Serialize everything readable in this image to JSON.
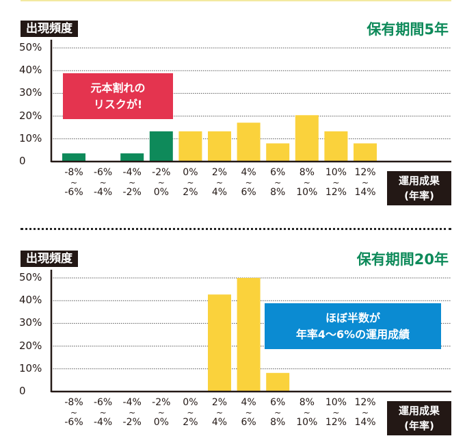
{
  "colors": {
    "green": "#0e8a5a",
    "yellow": "#fad23c",
    "red": "#e4344f",
    "blue": "#0b8bd2",
    "axis": "#231815"
  },
  "chart_data": [
    {
      "type": "bar",
      "title": "保有期間5年",
      "ylabel": "出現頻度",
      "xlabel": "運用成果(年率)",
      "xlabel_line1": "運用成果",
      "xlabel_line2": "(年率)",
      "ylim": [
        0,
        50
      ],
      "yticks": [
        "0",
        "10%",
        "20%",
        "30%",
        "40%",
        "50%"
      ],
      "grid": true,
      "categories": [
        {
          "from": "-8%",
          "to": "-6%"
        },
        {
          "from": "-6%",
          "to": "-4%"
        },
        {
          "from": "-4%",
          "to": "-2%"
        },
        {
          "from": "-2%",
          "to": "0%"
        },
        {
          "from": "0%",
          "to": "2%"
        },
        {
          "from": "2%",
          "to": "4%"
        },
        {
          "from": "4%",
          "to": "6%"
        },
        {
          "from": "6%",
          "to": "8%"
        },
        {
          "from": "8%",
          "to": "10%"
        },
        {
          "from": "10%",
          "to": "12%"
        },
        {
          "from": "12%",
          "to": "14%"
        }
      ],
      "values": [
        3.6,
        0,
        3.6,
        13.3,
        13.3,
        13.3,
        17.1,
        8.0,
        20.4,
        13.3,
        8.0
      ],
      "bar_colors": [
        "green",
        "green",
        "green",
        "green",
        "yellow",
        "yellow",
        "yellow",
        "yellow",
        "yellow",
        "yellow",
        "yellow"
      ],
      "annotation": {
        "line1": "元本割れの",
        "line2": "リスクが!",
        "color": "red"
      }
    },
    {
      "type": "bar",
      "title": "保有期間20年",
      "ylabel": "出現頻度",
      "xlabel": "運用成果(年率)",
      "xlabel_line1": "運用成果",
      "xlabel_line2": "(年率)",
      "ylim": [
        0,
        50
      ],
      "yticks": [
        "0",
        "10%",
        "20%",
        "30%",
        "40%",
        "50%"
      ],
      "grid": true,
      "categories": [
        {
          "from": "-8%",
          "to": "-6%"
        },
        {
          "from": "-6%",
          "to": "-4%"
        },
        {
          "from": "-4%",
          "to": "-2%"
        },
        {
          "from": "-2%",
          "to": "0%"
        },
        {
          "from": "0%",
          "to": "2%"
        },
        {
          "from": "2%",
          "to": "4%"
        },
        {
          "from": "4%",
          "to": "6%"
        },
        {
          "from": "6%",
          "to": "8%"
        },
        {
          "from": "8%",
          "to": "10%"
        },
        {
          "from": "10%",
          "to": "12%"
        },
        {
          "from": "12%",
          "to": "14%"
        }
      ],
      "values": [
        0,
        0,
        0,
        0,
        0,
        42.7,
        50,
        8.2,
        0,
        0,
        0
      ],
      "bar_colors": [
        "yellow",
        "yellow",
        "yellow",
        "yellow",
        "yellow",
        "yellow",
        "yellow",
        "yellow",
        "yellow",
        "yellow",
        "yellow"
      ],
      "annotation": {
        "line1": "ほぼ半数が",
        "line2": "年率4〜6%の運用成績",
        "color": "blue"
      }
    }
  ],
  "tilde": "~"
}
